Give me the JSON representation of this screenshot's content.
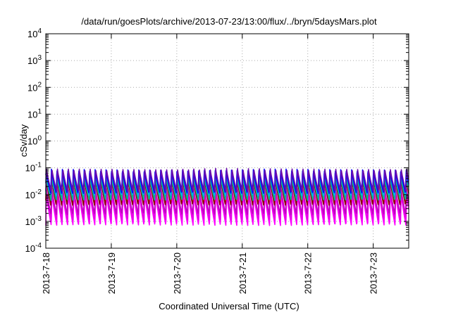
{
  "chart_data": {
    "type": "line",
    "title": "/data/run/goesPlots/archive/2013-07-23/13:00/flux/../bryn/5daysMars.plot",
    "xlabel": "Coordinated Universal Time (UTC)",
    "ylabel": "cSv/day",
    "yscale": "log",
    "ylim": [
      0.0001,
      10000
    ],
    "xlim": [
      "2013-07-18 00:00",
      "2013-07-23 13:00"
    ],
    "x_ticks": [
      "2013-7-18",
      "2013-7-19",
      "2013-7-20",
      "2013-7-21",
      "2013-7-22",
      "2013-7-23"
    ],
    "y_ticks": [
      {
        "base": "10",
        "exp": "-4"
      },
      {
        "base": "10",
        "exp": "-3"
      },
      {
        "base": "10",
        "exp": "-2"
      },
      {
        "base": "10",
        "exp": "-1"
      },
      {
        "base": "10",
        "exp": "0"
      },
      {
        "base": "10",
        "exp": "1"
      },
      {
        "base": "10",
        "exp": "2"
      },
      {
        "base": "10",
        "exp": "3"
      },
      {
        "base": "10",
        "exp": "4"
      }
    ],
    "grid": true,
    "legend": "none",
    "cycles_per_day": 12,
    "series": [
      {
        "color": "#ff00ff",
        "peak": 0.012,
        "trough": 0.0007
      },
      {
        "color": "#e600e6",
        "peak": 0.016,
        "trough": 0.0011
      },
      {
        "color": "#c000c0",
        "peak": 0.022,
        "trough": 0.0018
      },
      {
        "color": "#8b0000",
        "peak": 0.05,
        "trough": 0.004
      },
      {
        "color": "#ff0000",
        "peak": 0.07,
        "trough": 0.006
      },
      {
        "color": "#00b894",
        "peak": 0.045,
        "trough": 0.006
      },
      {
        "color": "#00aaff",
        "peak": 0.08,
        "trough": 0.009
      },
      {
        "color": "#0000ff",
        "peak": 0.09,
        "trough": 0.011
      },
      {
        "color": "#6a0dad",
        "peak": 0.095,
        "trough": 0.013
      }
    ]
  }
}
